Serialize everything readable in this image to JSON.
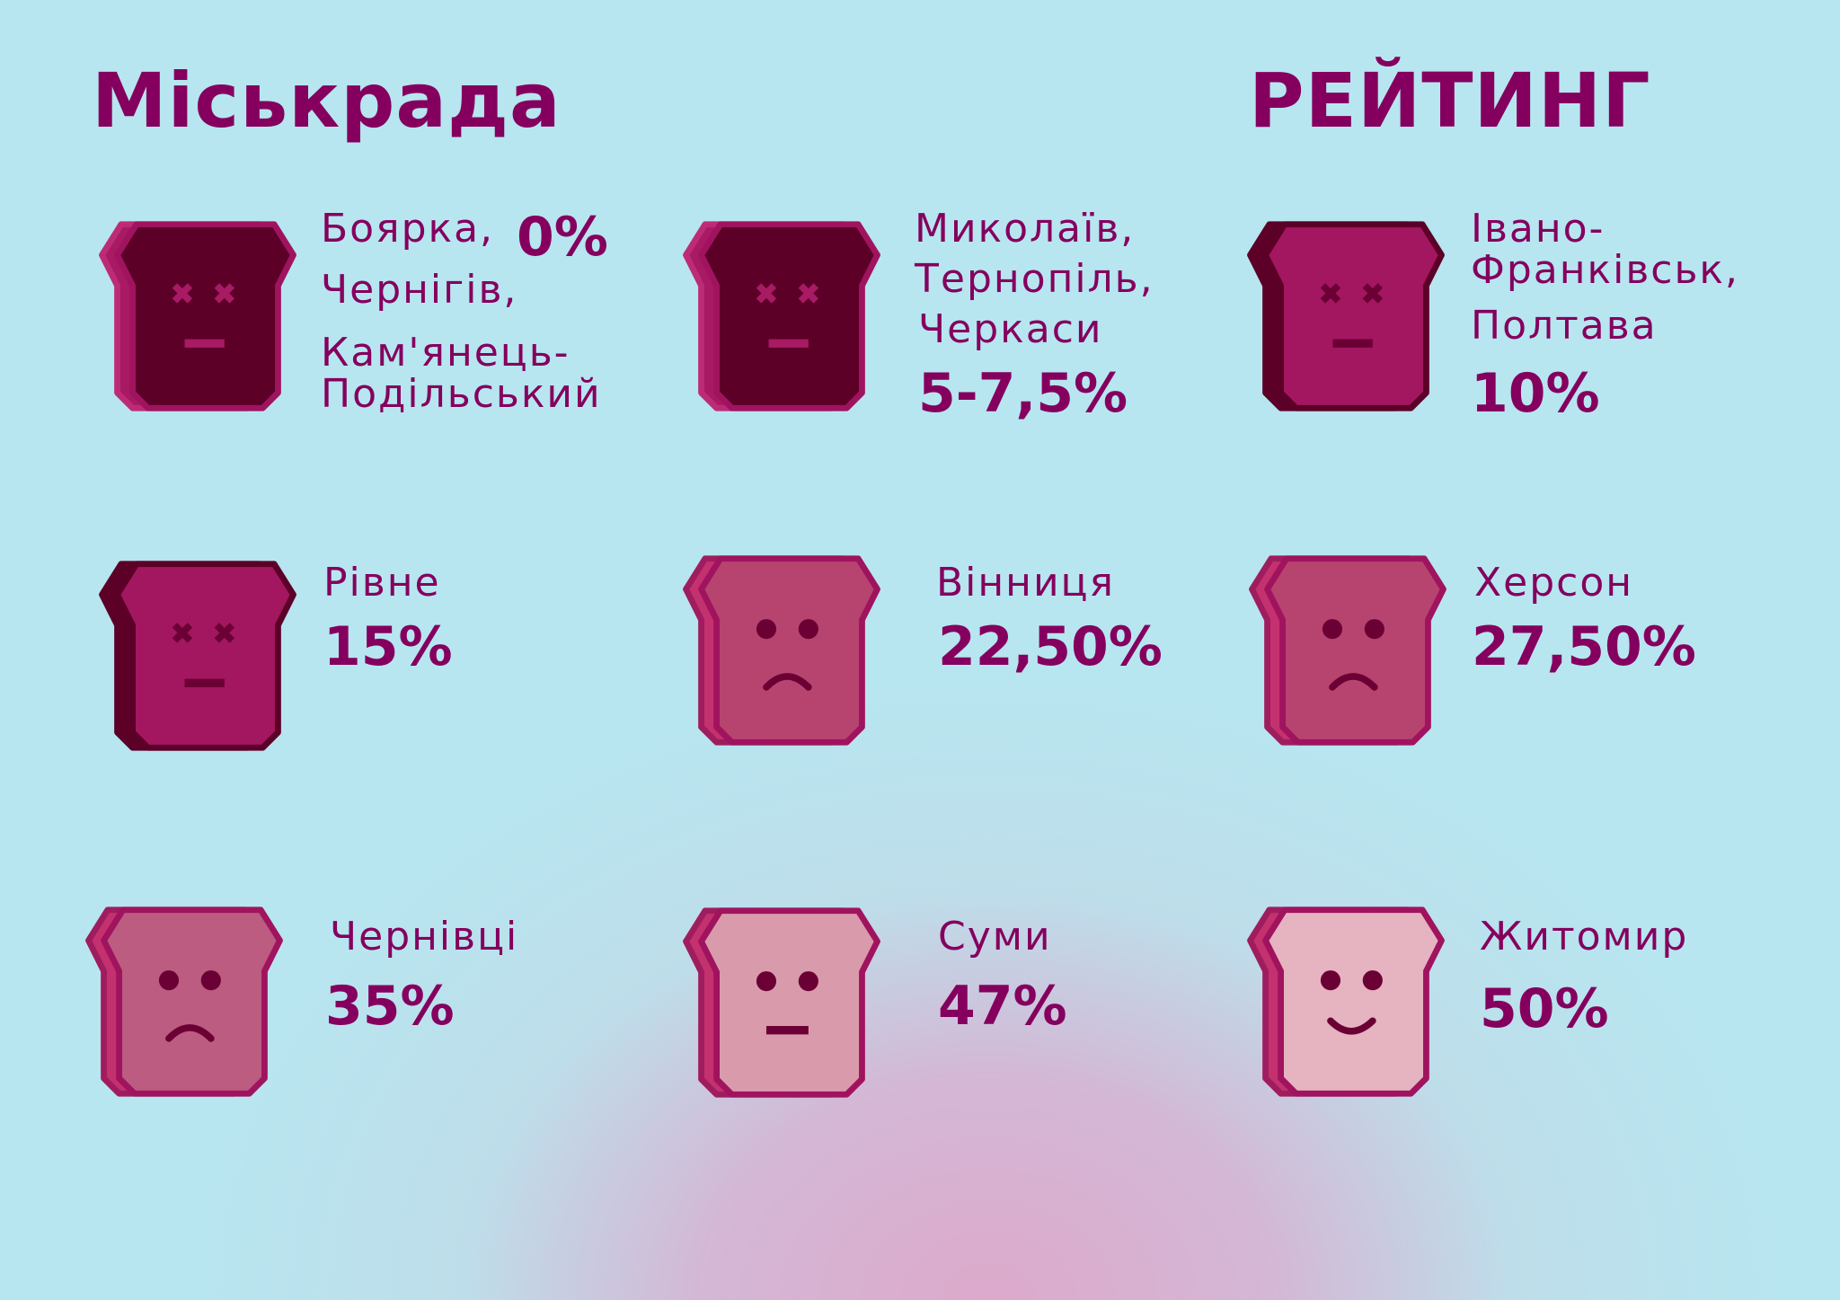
{
  "heading_left": "Міськрада",
  "heading_right": "РЕЙТИНГ",
  "colors": {
    "accent": "#85005e",
    "background": "#b7e6f0",
    "bottom_glow": "#dca9cb"
  },
  "cards": [
    {
      "label_lines": [
        "Боярка,",
        "Чернігів,",
        "Кам'янець-",
        "Подільський"
      ],
      "percent": "0%",
      "face": "dead",
      "percent_value": 0
    },
    {
      "label_lines": [
        "Миколаїв,",
        "Тернопіль,",
        "Черкаси"
      ],
      "percent": "5-7,5%",
      "face": "dead",
      "percent_value": 7.5
    },
    {
      "label_lines": [
        "Івано-",
        "Франківськ,",
        "Полтава"
      ],
      "percent": "10%",
      "face": "dead",
      "percent_value": 10
    },
    {
      "label_lines": [
        "Рівне"
      ],
      "percent": "15%",
      "face": "dead",
      "percent_value": 15
    },
    {
      "label_lines": [
        "Вінниця"
      ],
      "percent": "22,50%",
      "face": "sad",
      "percent_value": 22.5
    },
    {
      "label_lines": [
        "Херсон"
      ],
      "percent": "27,50%",
      "face": "sad",
      "percent_value": 27.5
    },
    {
      "label_lines": [
        "Чернівці"
      ],
      "percent": "35%",
      "face": "sad",
      "percent_value": 35
    },
    {
      "label_lines": [
        "Суми"
      ],
      "percent": "47%",
      "face": "neutral",
      "percent_value": 47
    },
    {
      "label_lines": [
        "Житомир"
      ],
      "percent": "50%",
      "face": "happy",
      "percent_value": 50
    }
  ]
}
